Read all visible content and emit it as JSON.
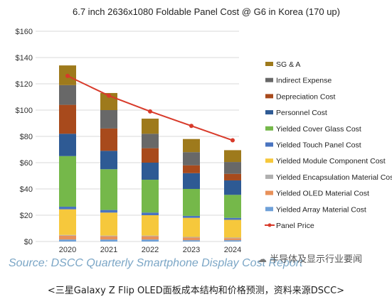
{
  "chart_data": {
    "type": "bar",
    "title": "6.7 inch 2636x1080 Foldable Panel Cost @ G6  in Korea (170 up)",
    "categories": [
      "2020",
      "2021",
      "2022",
      "2023",
      "2024"
    ],
    "ylim": [
      0,
      160
    ],
    "yticks": [
      "$0",
      "$20",
      "$40",
      "$60",
      "$80",
      "$100",
      "$120",
      "$140",
      "$160"
    ],
    "ytick_values": [
      0,
      20,
      40,
      60,
      80,
      100,
      120,
      140,
      160
    ],
    "grid": true,
    "legend_position": "right",
    "series": [
      {
        "name": "Yielded Array Material Cost",
        "color": "#6ea0d8",
        "values": [
          1.5,
          1.5,
          1.5,
          1.0,
          1.0
        ]
      },
      {
        "name": "Yielded OLED Material Cost",
        "color": "#e8915a",
        "values": [
          3.0,
          2.5,
          2.5,
          2.0,
          1.5
        ]
      },
      {
        "name": "Yielded Encapsulation Material Cost",
        "color": "#b0b0b0",
        "values": [
          0.5,
          0.5,
          0.5,
          0.5,
          0.5
        ]
      },
      {
        "name": "Yielded Module Component Cost",
        "color": "#f6c83c",
        "values": [
          19.5,
          17.5,
          15.5,
          14.5,
          13.5
        ]
      },
      {
        "name": "Yielded Touch Panel Cost",
        "color": "#4a74c0",
        "values": [
          2.0,
          2.0,
          2.0,
          1.5,
          1.5
        ]
      },
      {
        "name": "Yielded Cover Glass Cost",
        "color": "#75b84a",
        "values": [
          38.5,
          31.0,
          25.0,
          20.5,
          17.5
        ]
      },
      {
        "name": "Personnel Cost",
        "color": "#2e5a94",
        "values": [
          17.0,
          14.0,
          13.0,
          12.0,
          11.0
        ]
      },
      {
        "name": "Depreciation Cost",
        "color": "#a84a1c",
        "values": [
          22.0,
          17.0,
          11.0,
          6.0,
          5.0
        ]
      },
      {
        "name": "Indirect Expense",
        "color": "#686868",
        "values": [
          15.0,
          14.0,
          11.0,
          10.0,
          9.0
        ]
      },
      {
        "name": "SG & A",
        "color": "#9e7a1c",
        "values": [
          15.0,
          13.0,
          11.5,
          10.0,
          9.0
        ]
      }
    ],
    "line_series": {
      "name": "Panel Price",
      "color": "#d83a2a",
      "values": [
        126,
        111,
        99,
        88,
        77
      ]
    }
  },
  "source": "Source: DSCC Quarterly Smartphone Display Cost Report",
  "watermark": "半导体及显示行业要闻",
  "caption": "<三星Galaxy Z Flip OLED面板成本结构和价格预测，资料来源DSCC>"
}
